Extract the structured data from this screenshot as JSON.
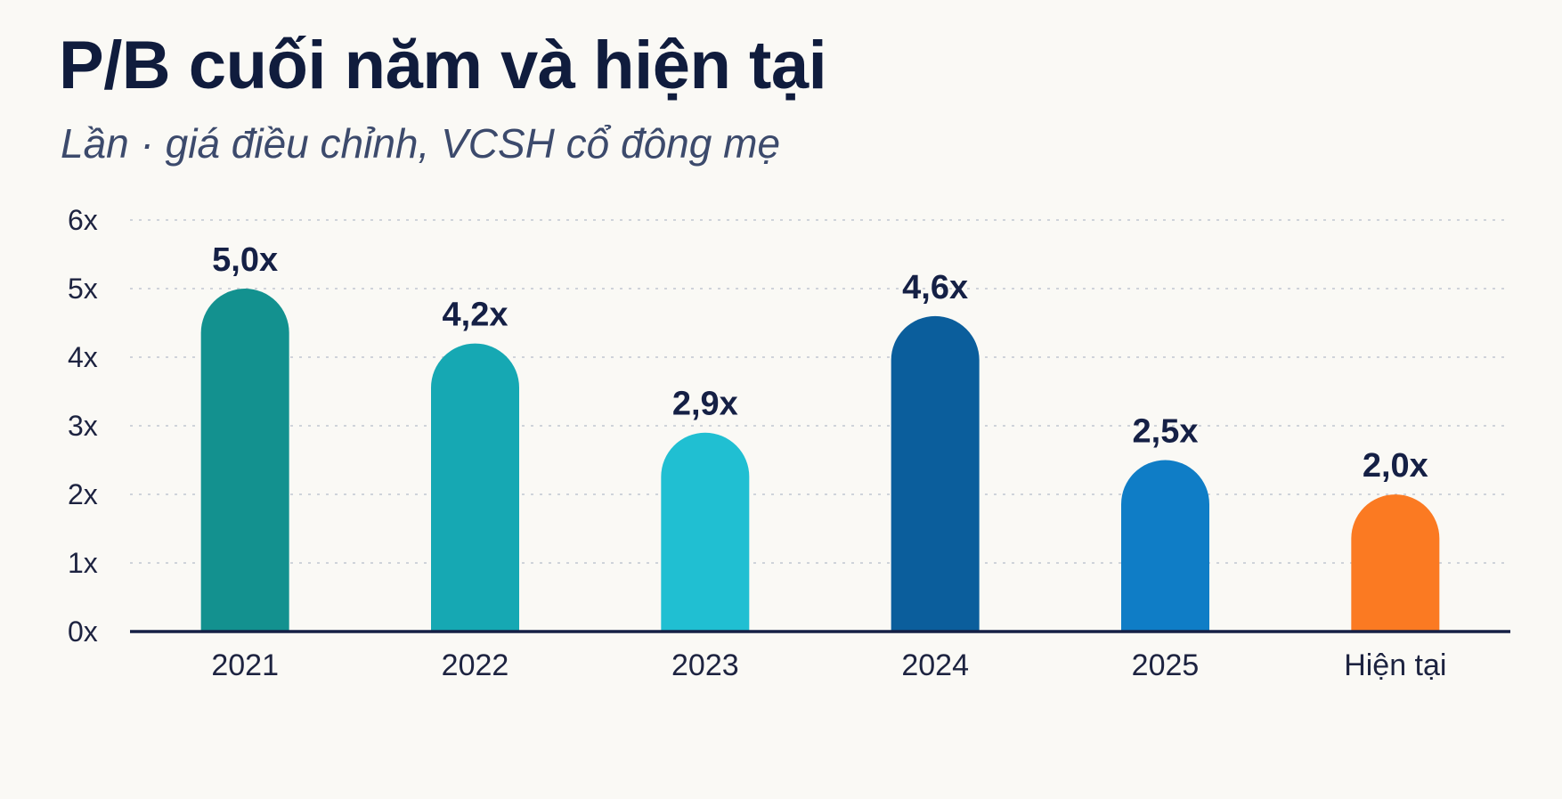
{
  "header": {
    "title": "P/B cuối năm và hiện tại",
    "subtitle": "Lần · giá điều chỉnh, VCSH cổ đông mẹ"
  },
  "chart_data": {
    "type": "bar",
    "title": "P/B cuối năm và hiện tại",
    "subtitle": "Lần · giá điều chỉnh, VCSH cổ đông mẹ",
    "xlabel": "",
    "ylabel": "",
    "categories": [
      "2021",
      "2022",
      "2023",
      "2024",
      "2025",
      "Hiện tại"
    ],
    "values": [
      5.0,
      4.2,
      2.9,
      4.6,
      2.5,
      2.0
    ],
    "value_labels": [
      "5,0x",
      "4,2x",
      "2,9x",
      "4,6x",
      "2,5x",
      "2,0x"
    ],
    "colors": [
      "#13918f",
      "#16a8b3",
      "#20bfd2",
      "#0b5e9c",
      "#0f7dc6",
      "#fb7a22"
    ],
    "ylim": [
      0,
      6
    ],
    "yticks": [
      0,
      1,
      2,
      3,
      4,
      5,
      6
    ],
    "ytick_labels": [
      "0x",
      "1x",
      "2x",
      "3x",
      "4x",
      "5x",
      "6x"
    ],
    "grid": true,
    "legend": "none"
  }
}
